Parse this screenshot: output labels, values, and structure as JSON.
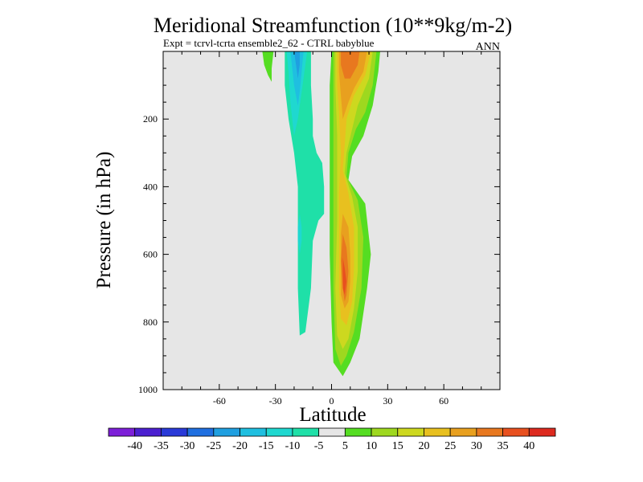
{
  "chart_data": {
    "type": "filled-contour",
    "title": "Meridional Streamfunction (10**9kg/m-2)",
    "subtitle": "Expt = tcrvl-tcrta   ensemble2_62 - CTRL babyblue",
    "season": "ANN",
    "xlabel": "Latitude",
    "ylabel": "Pressure (in hPa)",
    "xlim": [
      -90,
      90
    ],
    "ylim": [
      1000,
      0
    ],
    "x_ticks": [
      -60,
      -30,
      0,
      30,
      60
    ],
    "y_ticks": [
      200,
      400,
      600,
      800,
      1000
    ],
    "x_tick_labels": [
      "-60",
      "-30",
      "0",
      "30",
      "60"
    ],
    "y_tick_labels": [
      "200",
      "400",
      "600",
      "800",
      "1000"
    ],
    "background_color": "#e6e6e6",
    "contour_levels": [
      -40,
      -35,
      -30,
      -25,
      -20,
      -15,
      -10,
      -5,
      5,
      10,
      15,
      20,
      25,
      30,
      35,
      40
    ],
    "colorbar_labels": [
      "-40",
      "-35",
      "-30",
      "-25",
      "-20",
      "-15",
      "-10",
      "-5",
      "5",
      "10",
      "15",
      "20",
      "25",
      "30",
      "35",
      "40"
    ],
    "colorbar_colors": [
      "#7d1fd8",
      "#4b1fd0",
      "#2a3ad8",
      "#1f6fe0",
      "#1f9fe0",
      "#1fbfe0",
      "#1fd8d0",
      "#1fe0a8",
      "#e6e6e6",
      "#55dd22",
      "#9ed81f",
      "#cdd81f",
      "#e8c01f",
      "#e8a01f",
      "#e8781f",
      "#e8501f",
      "#dd2a1f"
    ],
    "features": [
      {
        "name": "northern-positive-cell",
        "polygons": [
          {
            "level": 5,
            "color": "#55dd22",
            "points": [
              [
                0,
                0
              ],
              [
                26,
                0
              ],
              [
                25,
                60
              ],
              [
                22,
                160
              ],
              [
                17,
                250
              ],
              [
                11,
                310
              ],
              [
                9,
                380
              ],
              [
                18,
                450
              ],
              [
                21,
                600
              ],
              [
                19,
                700
              ],
              [
                15,
                850
              ],
              [
                10,
                920
              ],
              [
                6,
                960
              ],
              [
                1,
                920
              ],
              [
                0,
                800
              ],
              [
                -1,
                600
              ],
              [
                -1,
                300
              ],
              [
                -1,
                100
              ]
            ]
          },
          {
            "level": 10,
            "color": "#9ed81f",
            "points": [
              [
                1,
                0
              ],
              [
                24,
                0
              ],
              [
                22,
                100
              ],
              [
                18,
                180
              ],
              [
                13,
                230
              ],
              [
                9,
                300
              ],
              [
                8,
                370
              ],
              [
                14,
                440
              ],
              [
                17,
                550
              ],
              [
                16,
                700
              ],
              [
                12,
                830
              ],
              [
                8,
                900
              ],
              [
                5,
                930
              ],
              [
                2,
                880
              ],
              [
                1,
                700
              ],
              [
                1,
                400
              ],
              [
                1,
                150
              ]
            ]
          },
          {
            "level": 15,
            "color": "#cdd81f",
            "points": [
              [
                2,
                0
              ],
              [
                22,
                0
              ],
              [
                20,
                80
              ],
              [
                14,
                160
              ],
              [
                11,
                230
              ],
              [
                8,
                300
              ],
              [
                7,
                360
              ],
              [
                11,
                430
              ],
              [
                14,
                520
              ],
              [
                14,
                650
              ],
              [
                12,
                760
              ],
              [
                9,
                850
              ],
              [
                6,
                880
              ],
              [
                3,
                840
              ],
              [
                2,
                700
              ],
              [
                3,
                500
              ],
              [
                3,
                400
              ],
              [
                3,
                250
              ],
              [
                2,
                100
              ]
            ]
          },
          {
            "level": 20,
            "color": "#e8c01f",
            "points": [
              [
                3,
                0
              ],
              [
                21,
                0
              ],
              [
                18,
                70
              ],
              [
                12,
                130
              ],
              [
                8,
                200
              ],
              [
                7,
                280
              ],
              [
                6,
                350
              ],
              [
                9,
                420
              ],
              [
                12,
                520
              ],
              [
                12,
                640
              ],
              [
                11,
                740
              ],
              [
                8,
                810
              ],
              [
                5,
                790
              ],
              [
                4,
                700
              ],
              [
                4,
                550
              ],
              [
                4,
                420
              ],
              [
                5,
                300
              ],
              [
                4,
                180
              ],
              [
                3,
                100
              ]
            ]
          },
          {
            "level": 25,
            "color": "#e8a01f",
            "points": [
              [
                4,
                0
              ],
              [
                19,
                0
              ],
              [
                17,
                60
              ],
              [
                12,
                110
              ],
              [
                9,
                150
              ],
              [
                6,
                200
              ],
              [
                5,
                130
              ],
              [
                4,
                60
              ]
            ]
          },
          {
            "level": 25,
            "color": "#e8a01f",
            "points": [
              [
                6,
                480
              ],
              [
                9,
                520
              ],
              [
                10,
                600
              ],
              [
                10,
                680
              ],
              [
                9,
                740
              ],
              [
                7,
                760
              ],
              [
                5,
                720
              ],
              [
                5,
                620
              ],
              [
                5,
                540
              ]
            ]
          },
          {
            "level": 30,
            "color": "#e8781f",
            "points": [
              [
                5,
                0
              ],
              [
                15,
                0
              ],
              [
                14,
                40
              ],
              [
                10,
                80
              ],
              [
                7,
                80
              ],
              [
                5,
                40
              ]
            ]
          },
          {
            "level": 30,
            "color": "#e8781f",
            "points": [
              [
                6,
                540
              ],
              [
                8,
                580
              ],
              [
                9,
                650
              ],
              [
                8,
                720
              ],
              [
                7,
                740
              ],
              [
                6,
                700
              ],
              [
                5,
                620
              ]
            ]
          },
          {
            "level": 35,
            "color": "#e8501f",
            "points": [
              [
                6,
                610
              ],
              [
                7,
                640
              ],
              [
                8,
                680
              ],
              [
                7,
                720
              ],
              [
                6,
                700
              ],
              [
                6,
                650
              ]
            ]
          }
        ]
      },
      {
        "name": "southern-negative-cell",
        "polygons": [
          {
            "level": -5,
            "color": "#1fe0a8",
            "points": [
              [
                -25,
                0
              ],
              [
                -11,
                0
              ],
              [
                -11,
                100
              ],
              [
                -10,
                200
              ],
              [
                -10,
                250
              ],
              [
                -8,
                300
              ],
              [
                -5,
                330
              ],
              [
                -4,
                400
              ],
              [
                -4,
                480
              ],
              [
                -7,
                500
              ],
              [
                -10,
                560
              ],
              [
                -11,
                700
              ],
              [
                -14,
                830
              ],
              [
                -17,
                840
              ],
              [
                -18,
                700
              ],
              [
                -18,
                430
              ],
              [
                -18,
                400
              ],
              [
                -20,
                300
              ],
              [
                -23,
                200
              ],
              [
                -25,
                100
              ]
            ]
          },
          {
            "level": -10,
            "color": "#1fd8d0",
            "points": [
              [
                -24,
                0
              ],
              [
                -13,
                0
              ],
              [
                -14,
                40
              ],
              [
                -16,
                120
              ],
              [
                -18,
                200
              ],
              [
                -20,
                250
              ],
              [
                -22,
                150
              ],
              [
                -23,
                60
              ]
            ]
          },
          {
            "level": -10,
            "color": "#1fd8d0",
            "points": [
              [
                -17,
                480
              ],
              [
                -16,
                520
              ],
              [
                -16,
                560
              ],
              [
                -17,
                600
              ],
              [
                -18,
                560
              ],
              [
                -18,
                520
              ]
            ]
          },
          {
            "level": -15,
            "color": "#1fbfe0",
            "points": [
              [
                -22,
                0
              ],
              [
                -15,
                0
              ],
              [
                -16,
                60
              ],
              [
                -17,
                120
              ],
              [
                -18,
                160
              ],
              [
                -20,
                100
              ]
            ]
          },
          {
            "level": -20,
            "color": "#1f9fe0",
            "points": [
              [
                -20,
                0
              ],
              [
                -17,
                0
              ],
              [
                -17,
                40
              ],
              [
                -18,
                80
              ],
              [
                -19,
                40
              ]
            ]
          }
        ]
      },
      {
        "name": "southern-upper-positive-cell",
        "polygons": [
          {
            "level": 5,
            "color": "#55dd22",
            "points": [
              [
                -37,
                0
              ],
              [
                -31,
                0
              ],
              [
                -32,
                50
              ],
              [
                -32,
                90
              ],
              [
                -34,
                70
              ],
              [
                -36,
                40
              ]
            ]
          }
        ]
      }
    ]
  }
}
